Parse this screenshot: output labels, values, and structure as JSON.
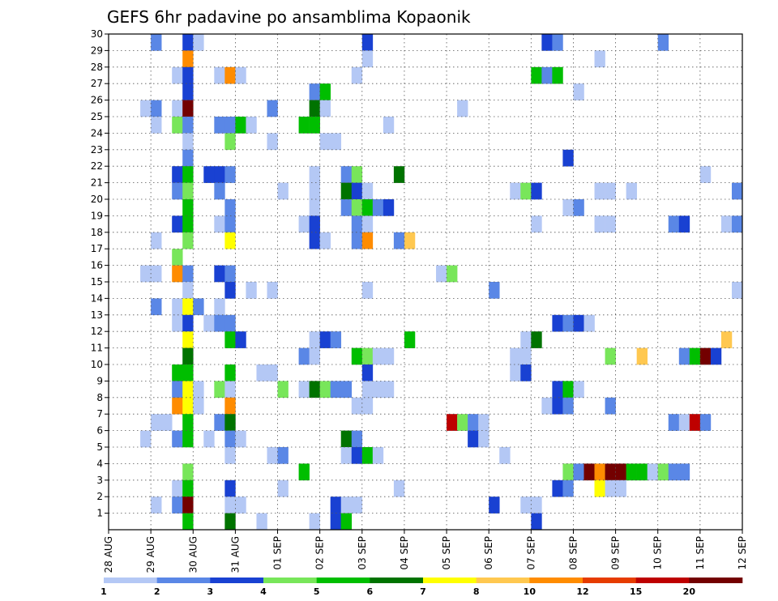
{
  "chart_data": {
    "type": "heatmap",
    "title": "GEFS 6hr padavine po ansamblima Kopaonik",
    "xlabel": "",
    "ylabel": "",
    "x_ticks": [
      "28 AUG",
      "29 AUG",
      "30 AUG",
      "31 AUG",
      "01 SEP",
      "02 SEP",
      "03 SEP",
      "04 SEP",
      "05 SEP",
      "06 SEP",
      "07 SEP",
      "08 SEP",
      "09 SEP",
      "10 SEP",
      "11 SEP",
      "12 SEP"
    ],
    "y_ticks": [
      1,
      2,
      3,
      4,
      5,
      6,
      7,
      8,
      9,
      10,
      11,
      12,
      13,
      14,
      15,
      16,
      17,
      18,
      19,
      20,
      21,
      22,
      23,
      24,
      25,
      26,
      27,
      28,
      29,
      30
    ],
    "x_range_steps": [
      0,
      60
    ],
    "y_range": [
      0,
      30
    ],
    "step_hours": 6,
    "grid": true,
    "colorbar": {
      "levels": [
        1,
        2,
        3,
        4,
        5,
        6,
        7,
        8,
        10,
        12,
        15,
        20
      ],
      "labels": [
        "1",
        "2",
        "3",
        "4",
        "5",
        "6",
        "7",
        "8",
        "10",
        "12",
        "15",
        "20"
      ],
      "colors": [
        "#b4c8f5",
        "#5a87e6",
        "#1941d2",
        "#78e65a",
        "#00be00",
        "#007300",
        "#ffff00",
        "#ffc850",
        "#ff8c00",
        "#e63c00",
        "#be0000",
        "#730000"
      ]
    },
    "cells": [
      [
        4,
        30,
        1
      ],
      [
        7,
        30,
        2
      ],
      [
        8,
        30,
        0
      ],
      [
        24,
        30,
        2
      ],
      [
        41,
        30,
        2
      ],
      [
        42,
        30,
        1
      ],
      [
        52,
        30,
        1
      ],
      [
        7,
        29,
        8
      ],
      [
        24,
        29,
        0
      ],
      [
        46,
        29,
        0
      ],
      [
        6,
        28,
        0
      ],
      [
        7,
        28,
        2
      ],
      [
        10,
        28,
        0
      ],
      [
        11,
        28,
        8
      ],
      [
        12,
        28,
        0
      ],
      [
        23,
        28,
        0
      ],
      [
        40,
        28,
        4
      ],
      [
        41,
        28,
        1
      ],
      [
        42,
        28,
        4
      ],
      [
        7,
        27,
        2
      ],
      [
        19,
        27,
        1
      ],
      [
        20,
        27,
        4
      ],
      [
        44,
        27,
        0
      ],
      [
        3,
        26,
        0
      ],
      [
        4,
        26,
        1
      ],
      [
        6,
        26,
        0
      ],
      [
        7,
        26,
        11
      ],
      [
        15,
        26,
        1
      ],
      [
        19,
        26,
        5
      ],
      [
        20,
        26,
        0
      ],
      [
        33,
        26,
        0
      ],
      [
        4,
        25,
        0
      ],
      [
        6,
        25,
        3
      ],
      [
        7,
        25,
        1
      ],
      [
        10,
        25,
        1
      ],
      [
        11,
        25,
        1
      ],
      [
        12,
        25,
        4
      ],
      [
        13,
        25,
        0
      ],
      [
        18,
        25,
        4
      ],
      [
        19,
        25,
        4
      ],
      [
        26,
        25,
        0
      ],
      [
        7,
        24,
        0
      ],
      [
        11,
        24,
        3
      ],
      [
        15,
        24,
        0
      ],
      [
        20,
        24,
        0
      ],
      [
        21,
        24,
        0
      ],
      [
        7,
        23,
        1
      ],
      [
        43,
        23,
        2
      ],
      [
        6,
        22,
        2
      ],
      [
        7,
        22,
        4
      ],
      [
        9,
        22,
        2
      ],
      [
        10,
        22,
        2
      ],
      [
        11,
        22,
        1
      ],
      [
        19,
        22,
        0
      ],
      [
        22,
        22,
        1
      ],
      [
        23,
        22,
        3
      ],
      [
        27,
        22,
        5
      ],
      [
        56,
        22,
        0
      ],
      [
        6,
        21,
        1
      ],
      [
        7,
        21,
        3
      ],
      [
        10,
        21,
        1
      ],
      [
        16,
        21,
        0
      ],
      [
        19,
        21,
        0
      ],
      [
        22,
        21,
        5
      ],
      [
        23,
        21,
        2
      ],
      [
        24,
        21,
        0
      ],
      [
        38,
        21,
        0
      ],
      [
        39,
        21,
        3
      ],
      [
        40,
        21,
        2
      ],
      [
        46,
        21,
        0
      ],
      [
        47,
        21,
        0
      ],
      [
        49,
        21,
        0
      ],
      [
        59,
        21,
        1
      ],
      [
        7,
        20,
        4
      ],
      [
        11,
        20,
        1
      ],
      [
        19,
        20,
        0
      ],
      [
        22,
        20,
        1
      ],
      [
        23,
        20,
        3
      ],
      [
        24,
        20,
        4
      ],
      [
        25,
        20,
        1
      ],
      [
        26,
        20,
        2
      ],
      [
        43,
        20,
        0
      ],
      [
        44,
        20,
        1
      ],
      [
        6,
        19,
        2
      ],
      [
        7,
        19,
        4
      ],
      [
        10,
        19,
        0
      ],
      [
        11,
        19,
        1
      ],
      [
        18,
        19,
        0
      ],
      [
        19,
        19,
        2
      ],
      [
        23,
        19,
        1
      ],
      [
        24,
        19,
        0
      ],
      [
        40,
        19,
        0
      ],
      [
        46,
        19,
        0
      ],
      [
        47,
        19,
        0
      ],
      [
        53,
        19,
        1
      ],
      [
        54,
        19,
        2
      ],
      [
        58,
        19,
        0
      ],
      [
        59,
        19,
        1
      ],
      [
        4,
        18,
        0
      ],
      [
        7,
        18,
        3
      ],
      [
        11,
        18,
        6
      ],
      [
        19,
        18,
        2
      ],
      [
        20,
        18,
        0
      ],
      [
        23,
        18,
        1
      ],
      [
        24,
        18,
        8
      ],
      [
        27,
        18,
        1
      ],
      [
        28,
        18,
        7
      ],
      [
        6,
        17,
        3
      ],
      [
        3,
        16,
        0
      ],
      [
        4,
        16,
        0
      ],
      [
        6,
        16,
        8
      ],
      [
        7,
        16,
        1
      ],
      [
        10,
        16,
        2
      ],
      [
        11,
        16,
        1
      ],
      [
        31,
        16,
        0
      ],
      [
        32,
        16,
        3
      ],
      [
        7,
        15,
        0
      ],
      [
        11,
        15,
        2
      ],
      [
        13,
        15,
        0
      ],
      [
        15,
        15,
        0
      ],
      [
        24,
        15,
        0
      ],
      [
        36,
        15,
        1
      ],
      [
        59,
        15,
        0
      ],
      [
        4,
        14,
        1
      ],
      [
        6,
        14,
        0
      ],
      [
        7,
        14,
        6
      ],
      [
        8,
        14,
        1
      ],
      [
        10,
        14,
        0
      ],
      [
        6,
        13,
        0
      ],
      [
        7,
        13,
        2
      ],
      [
        9,
        13,
        0
      ],
      [
        10,
        13,
        1
      ],
      [
        11,
        13,
        1
      ],
      [
        42,
        13,
        2
      ],
      [
        43,
        13,
        1
      ],
      [
        44,
        13,
        2
      ],
      [
        45,
        13,
        0
      ],
      [
        7,
        12,
        6
      ],
      [
        11,
        12,
        4
      ],
      [
        12,
        12,
        2
      ],
      [
        19,
        12,
        0
      ],
      [
        20,
        12,
        2
      ],
      [
        21,
        12,
        1
      ],
      [
        28,
        12,
        4
      ],
      [
        39,
        12,
        0
      ],
      [
        40,
        12,
        5
      ],
      [
        58,
        12,
        7
      ],
      [
        7,
        11,
        5
      ],
      [
        18,
        11,
        1
      ],
      [
        19,
        11,
        0
      ],
      [
        23,
        11,
        4
      ],
      [
        24,
        11,
        3
      ],
      [
        25,
        11,
        0
      ],
      [
        26,
        11,
        0
      ],
      [
        38,
        11,
        0
      ],
      [
        39,
        11,
        0
      ],
      [
        47,
        11,
        3
      ],
      [
        50,
        11,
        7
      ],
      [
        54,
        11,
        1
      ],
      [
        55,
        11,
        4
      ],
      [
        56,
        11,
        11
      ],
      [
        57,
        11,
        2
      ],
      [
        6,
        10,
        4
      ],
      [
        7,
        10,
        4
      ],
      [
        11,
        10,
        4
      ],
      [
        14,
        10,
        0
      ],
      [
        15,
        10,
        0
      ],
      [
        24,
        10,
        2
      ],
      [
        38,
        10,
        0
      ],
      [
        39,
        10,
        2
      ],
      [
        6,
        9,
        1
      ],
      [
        7,
        9,
        6
      ],
      [
        8,
        9,
        0
      ],
      [
        10,
        9,
        3
      ],
      [
        11,
        9,
        0
      ],
      [
        16,
        9,
        3
      ],
      [
        18,
        9,
        0
      ],
      [
        19,
        9,
        5
      ],
      [
        20,
        9,
        3
      ],
      [
        21,
        9,
        1
      ],
      [
        22,
        9,
        1
      ],
      [
        24,
        9,
        0
      ],
      [
        25,
        9,
        0
      ],
      [
        26,
        9,
        0
      ],
      [
        42,
        9,
        2
      ],
      [
        43,
        9,
        4
      ],
      [
        44,
        9,
        0
      ],
      [
        6,
        8,
        8
      ],
      [
        7,
        8,
        6
      ],
      [
        8,
        8,
        0
      ],
      [
        11,
        8,
        8
      ],
      [
        23,
        8,
        0
      ],
      [
        24,
        8,
        0
      ],
      [
        41,
        8,
        0
      ],
      [
        42,
        8,
        2
      ],
      [
        43,
        8,
        1
      ],
      [
        47,
        8,
        1
      ],
      [
        4,
        7,
        0
      ],
      [
        5,
        7,
        0
      ],
      [
        7,
        7,
        4
      ],
      [
        10,
        7,
        1
      ],
      [
        11,
        7,
        5
      ],
      [
        32,
        7,
        10
      ],
      [
        33,
        7,
        3
      ],
      [
        34,
        7,
        1
      ],
      [
        35,
        7,
        0
      ],
      [
        53,
        7,
        1
      ],
      [
        54,
        7,
        0
      ],
      [
        55,
        7,
        10
      ],
      [
        56,
        7,
        1
      ],
      [
        3,
        6,
        0
      ],
      [
        6,
        6,
        1
      ],
      [
        7,
        6,
        4
      ],
      [
        9,
        6,
        0
      ],
      [
        11,
        6,
        1
      ],
      [
        12,
        6,
        0
      ],
      [
        22,
        6,
        5
      ],
      [
        23,
        6,
        1
      ],
      [
        34,
        6,
        2
      ],
      [
        35,
        6,
        0
      ],
      [
        11,
        5,
        0
      ],
      [
        15,
        5,
        0
      ],
      [
        16,
        5,
        1
      ],
      [
        22,
        5,
        0
      ],
      [
        23,
        5,
        2
      ],
      [
        24,
        5,
        4
      ],
      [
        25,
        5,
        0
      ],
      [
        37,
        5,
        0
      ],
      [
        7,
        4,
        3
      ],
      [
        18,
        4,
        4
      ],
      [
        43,
        4,
        3
      ],
      [
        44,
        4,
        1
      ],
      [
        45,
        4,
        11
      ],
      [
        46,
        4,
        8
      ],
      [
        47,
        4,
        11
      ],
      [
        48,
        4,
        11
      ],
      [
        49,
        4,
        4
      ],
      [
        50,
        4,
        4
      ],
      [
        51,
        4,
        0
      ],
      [
        52,
        4,
        3
      ],
      [
        53,
        4,
        1
      ],
      [
        54,
        4,
        1
      ],
      [
        6,
        3,
        0
      ],
      [
        7,
        3,
        4
      ],
      [
        11,
        3,
        2
      ],
      [
        16,
        3,
        0
      ],
      [
        27,
        3,
        0
      ],
      [
        42,
        3,
        2
      ],
      [
        43,
        3,
        1
      ],
      [
        46,
        3,
        6
      ],
      [
        47,
        3,
        0
      ],
      [
        48,
        3,
        0
      ],
      [
        4,
        2,
        0
      ],
      [
        6,
        2,
        1
      ],
      [
        7,
        2,
        11
      ],
      [
        11,
        2,
        0
      ],
      [
        12,
        2,
        0
      ],
      [
        21,
        2,
        2
      ],
      [
        22,
        2,
        0
      ],
      [
        23,
        2,
        0
      ],
      [
        36,
        2,
        2
      ],
      [
        39,
        2,
        0
      ],
      [
        40,
        2,
        0
      ],
      [
        7,
        1,
        4
      ],
      [
        11,
        1,
        5
      ],
      [
        14,
        1,
        0
      ],
      [
        19,
        1,
        0
      ],
      [
        21,
        1,
        2
      ],
      [
        22,
        1,
        4
      ],
      [
        40,
        1,
        2
      ]
    ]
  }
}
